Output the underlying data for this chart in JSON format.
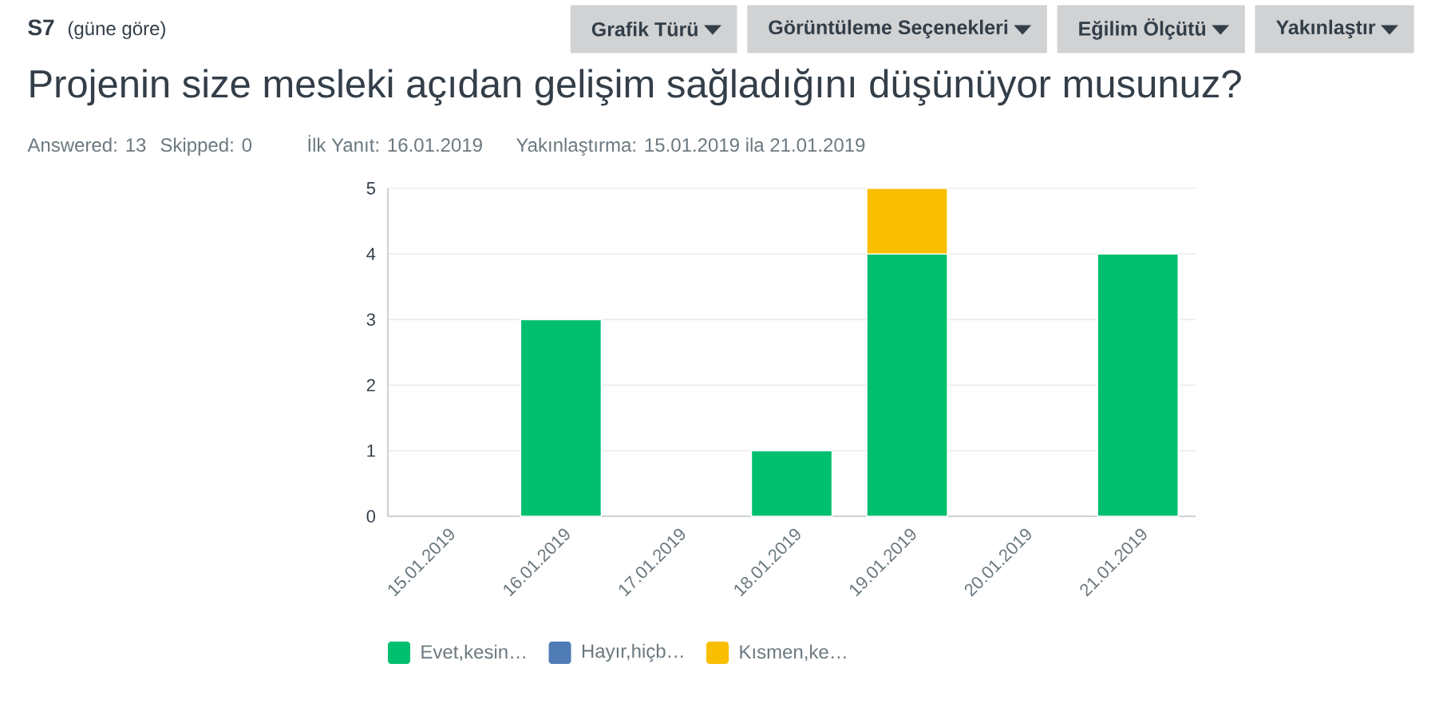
{
  "chart_data": {
    "type": "bar",
    "title": "Projenin size mesleki açıdan gelişim sağladığını düşünüyor musunuz?",
    "annotations": [
      "S7",
      "(güne göre)",
      "Grafik Türü",
      "Görüntüleme Seçenekleri",
      "Eğilim Ölçütü",
      "Yakınlaştır",
      "Answered: 13",
      "Skipped: 0",
      "İlk Yanıt: 16.01.2019",
      "Yakınlaştırma: 15.01.2019 ila 21.01.2019"
    ],
    "categories": [
      "15.01.2019",
      "16.01.2019",
      "17.01.2019",
      "18.01.2019",
      "19.01.2019",
      "20.01.2019",
      "21.01.2019"
    ],
    "series": [
      {
        "name": "Evet,kesin…",
        "color": "#00bf6f",
        "values": [
          0,
          3,
          0,
          1,
          4,
          0,
          4
        ]
      },
      {
        "name": "Hayır,hiçb…",
        "color": "#507cb6",
        "values": [
          0,
          0,
          0,
          0,
          0,
          0,
          0
        ]
      },
      {
        "name": "Kısmen,ke…",
        "color": "#f9be00",
        "values": [
          0,
          0,
          0,
          0,
          1,
          0,
          0
        ]
      }
    ],
    "stacked": true,
    "ylim": [
      0,
      5
    ],
    "yticks": [
      0,
      1,
      2,
      3,
      4,
      5
    ],
    "grid": "y",
    "legend": "bottom"
  }
}
